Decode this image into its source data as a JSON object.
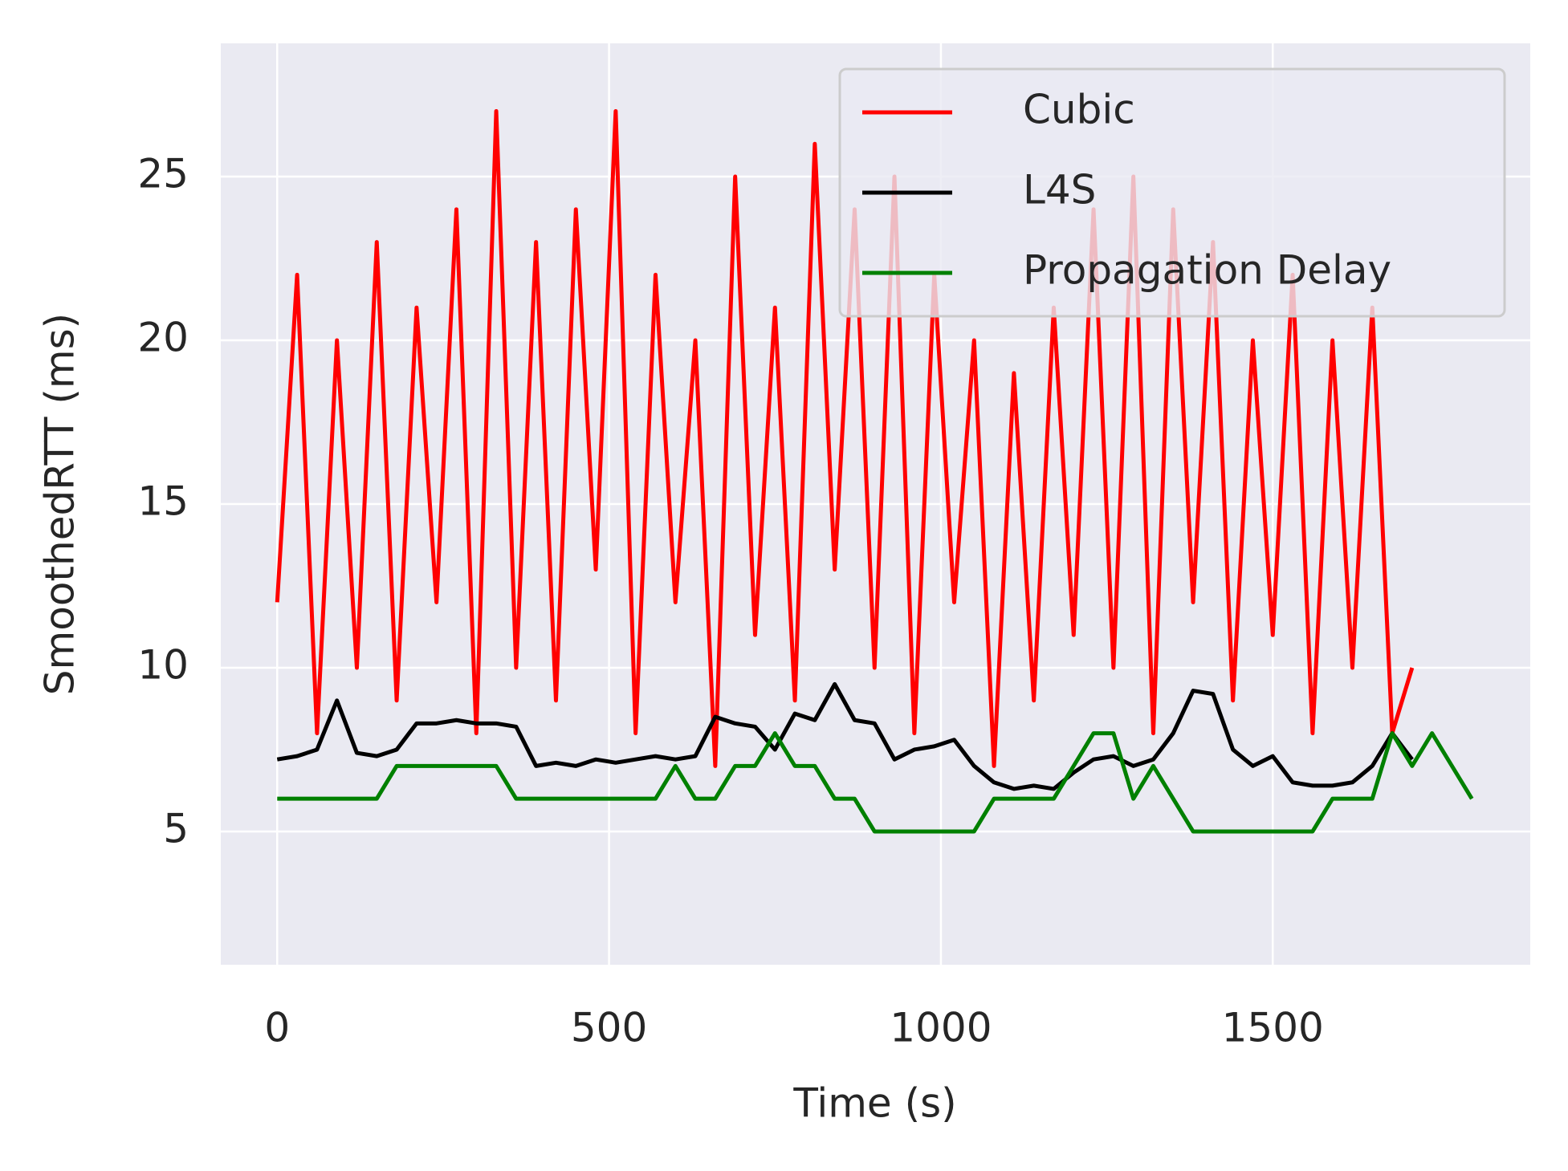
{
  "chart_data": {
    "type": "line",
    "x": [
      0,
      30,
      60,
      90,
      120,
      150,
      180,
      210,
      240,
      270,
      300,
      330,
      360,
      390,
      420,
      450,
      480,
      510,
      540,
      570,
      600,
      630,
      660,
      690,
      720,
      750,
      780,
      810,
      840,
      870,
      900,
      930,
      960,
      990,
      1020,
      1050,
      1080,
      1110,
      1140,
      1170,
      1200,
      1230,
      1260,
      1290,
      1320,
      1350,
      1380,
      1410,
      1440,
      1470,
      1500,
      1530,
      1560,
      1590,
      1620,
      1650,
      1680,
      1710,
      1740,
      1770,
      1800
    ],
    "series": [
      {
        "name": "Cubic",
        "color": "#ff0000",
        "values": [
          12,
          22,
          8,
          20,
          10,
          23,
          9,
          21,
          12,
          24,
          8,
          27,
          10,
          23,
          9,
          24,
          13,
          27,
          8,
          22,
          12,
          20,
          7,
          25,
          11,
          21,
          9,
          26,
          13,
          24,
          10,
          25,
          8,
          22,
          12,
          20,
          7,
          19,
          9,
          21,
          11,
          24,
          10,
          25,
          8,
          24,
          12,
          23,
          9,
          20,
          11,
          22,
          8,
          20,
          10,
          21,
          8,
          10,
          null,
          null,
          null
        ]
      },
      {
        "name": "L4S",
        "color": "#000000",
        "values": [
          7.2,
          7.3,
          7.5,
          9,
          7.4,
          7.3,
          7.5,
          8.3,
          8.3,
          8.4,
          8.3,
          8.3,
          8.2,
          7,
          7.1,
          7,
          7.2,
          7.1,
          7.2,
          7.3,
          7.2,
          7.3,
          8.5,
          8.3,
          8.2,
          7.5,
          8.6,
          8.4,
          9.5,
          8.4,
          8.3,
          7.2,
          7.5,
          7.6,
          7.8,
          7,
          6.5,
          6.3,
          6.4,
          6.3,
          6.8,
          7.2,
          7.3,
          7,
          7.2,
          8,
          9.3,
          9.2,
          7.5,
          7,
          7.3,
          6.5,
          6.4,
          6.4,
          6.5,
          7,
          8,
          7.2,
          null,
          null,
          null
        ]
      },
      {
        "name": "Propagation Delay",
        "color": "#008000",
        "values": [
          6,
          6,
          6,
          6,
          6,
          6,
          7,
          7,
          7,
          7,
          7,
          7,
          6,
          6,
          6,
          6,
          6,
          6,
          6,
          6,
          7,
          6,
          6,
          7,
          7,
          8,
          7,
          7,
          6,
          6,
          5,
          5,
          5,
          5,
          5,
          5,
          6,
          6,
          6,
          6,
          7,
          8,
          8,
          6,
          7,
          6,
          5,
          5,
          5,
          5,
          5,
          5,
          5,
          6,
          6,
          6,
          8,
          7,
          8,
          7,
          6
        ]
      }
    ],
    "xlabel": "Time (s)",
    "ylabel": "SmoothedRTT (ms)",
    "xlim": [
      -85,
      1888
    ],
    "ylim": [
      0.93,
      29.07
    ],
    "xticks": [
      0,
      500,
      1000,
      1500
    ],
    "yticks": [
      5,
      10,
      15,
      20,
      25
    ],
    "grid": true,
    "legend": "upper right"
  }
}
